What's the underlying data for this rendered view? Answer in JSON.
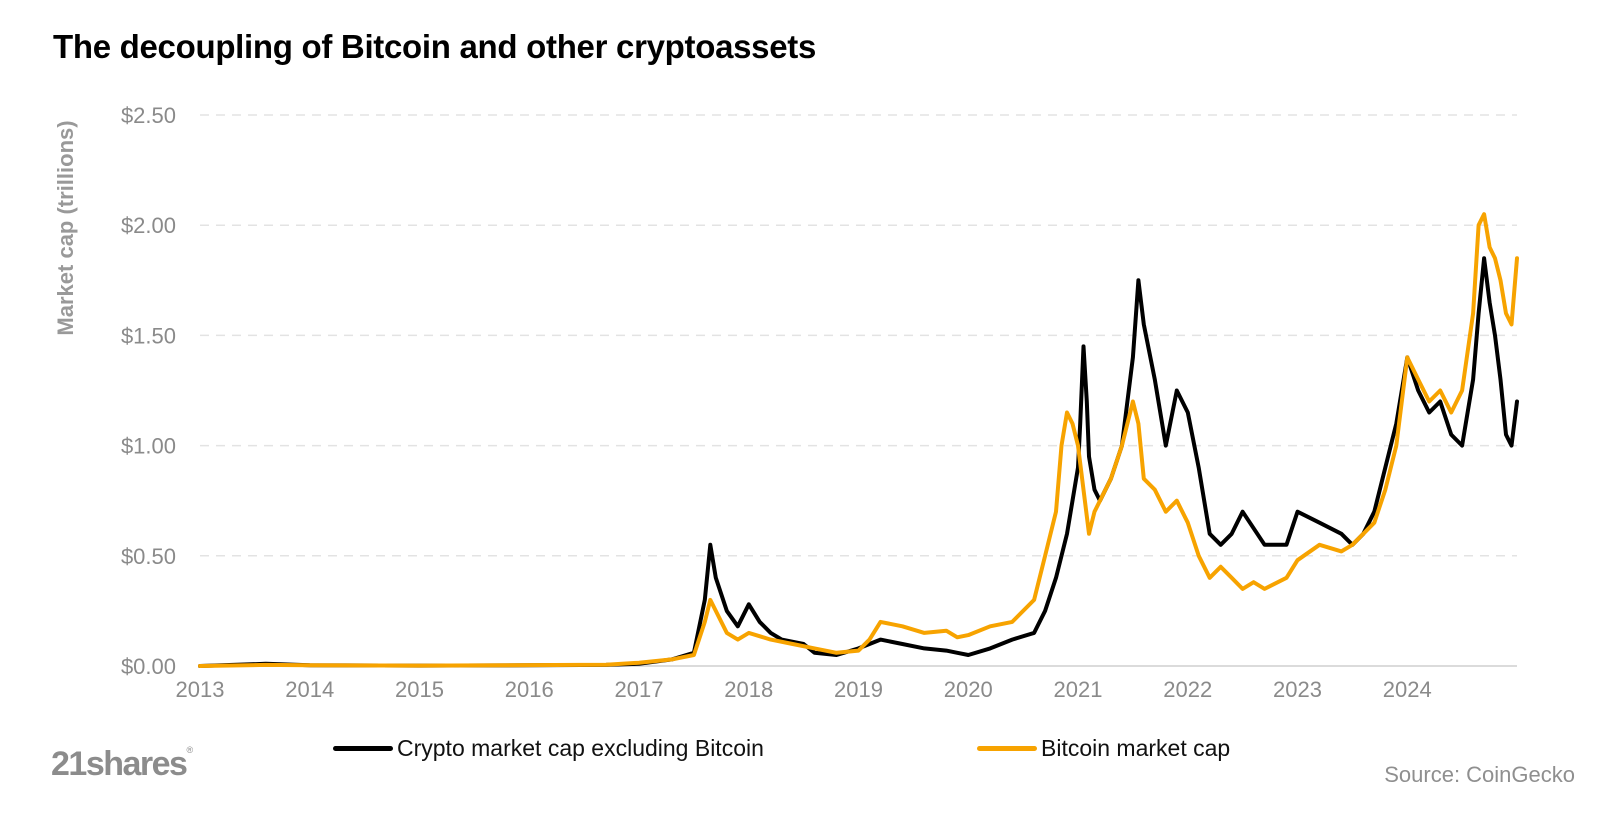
{
  "header": {
    "title": "The decoupling of Bitcoin and other cryptoassets"
  },
  "footer": {
    "brand": "21shares",
    "brand_mark": "®",
    "source": "Source: CoinGecko"
  },
  "colors": {
    "crypto_ex_btc": "#000000",
    "bitcoin": "#f7a300",
    "grid": "#e3e3e3",
    "axis_text": "#8a8a8a",
    "ylabel": "#999999"
  },
  "chart_data": {
    "type": "line",
    "title": "The decoupling of Bitcoin and other cryptoassets",
    "xlabel": "",
    "ylabel": "Market cap (trillions)",
    "xlim": [
      2013.0,
      2025.0
    ],
    "ylim": [
      0,
      2.5
    ],
    "grid": true,
    "legend_position": "bottom",
    "x_ticks": [
      2013,
      2014,
      2015,
      2016,
      2017,
      2018,
      2019,
      2020,
      2021,
      2022,
      2023,
      2024
    ],
    "x_tick_labels": [
      "2013",
      "2014",
      "2015",
      "2016",
      "2017",
      "2018",
      "2019",
      "2020",
      "2021",
      "2022",
      "2023",
      "2024"
    ],
    "y_ticks": [
      0,
      0.5,
      1.0,
      1.5,
      2.0,
      2.5
    ],
    "y_tick_labels": [
      "$0.00",
      "$0.50",
      "$1.00",
      "$1.50",
      "$2.00",
      "$2.50"
    ],
    "series": [
      {
        "name": "Crypto market cap excluding Bitcoin",
        "color": "#000000",
        "x": [
          2013.0,
          2013.6,
          2014.0,
          2015.0,
          2016.0,
          2016.7,
          2017.0,
          2017.3,
          2017.5,
          2017.6,
          2017.65,
          2017.7,
          2017.8,
          2017.9,
          2018.0,
          2018.1,
          2018.2,
          2018.3,
          2018.5,
          2018.6,
          2018.8,
          2019.0,
          2019.2,
          2019.4,
          2019.6,
          2019.8,
          2019.9,
          2020.0,
          2020.2,
          2020.4,
          2020.6,
          2020.7,
          2020.8,
          2020.9,
          2021.0,
          2021.02,
          2021.05,
          2021.08,
          2021.1,
          2021.15,
          2021.2,
          2021.3,
          2021.4,
          2021.5,
          2021.55,
          2021.6,
          2021.7,
          2021.75,
          2021.8,
          2021.9,
          2022.0,
          2022.1,
          2022.2,
          2022.3,
          2022.4,
          2022.5,
          2022.7,
          2022.9,
          2023.0,
          2023.2,
          2023.4,
          2023.5,
          2023.6,
          2023.7,
          2023.8,
          2023.9,
          2024.0,
          2024.1,
          2024.2,
          2024.3,
          2024.4,
          2024.5,
          2024.6,
          2024.65,
          2024.7,
          2024.75,
          2024.8,
          2024.85,
          2024.9,
          2024.95,
          2025.0
        ],
        "y": [
          0.0,
          0.01,
          0.003,
          0.002,
          0.003,
          0.005,
          0.01,
          0.03,
          0.06,
          0.3,
          0.55,
          0.4,
          0.25,
          0.18,
          0.28,
          0.2,
          0.15,
          0.12,
          0.1,
          0.06,
          0.05,
          0.08,
          0.12,
          0.1,
          0.08,
          0.07,
          0.06,
          0.05,
          0.08,
          0.12,
          0.15,
          0.25,
          0.4,
          0.6,
          0.9,
          1.1,
          1.45,
          1.2,
          0.95,
          0.8,
          0.75,
          0.85,
          1.0,
          1.4,
          1.75,
          1.55,
          1.3,
          1.15,
          1.0,
          1.25,
          1.15,
          0.9,
          0.6,
          0.55,
          0.6,
          0.7,
          0.55,
          0.55,
          0.7,
          0.65,
          0.6,
          0.55,
          0.6,
          0.7,
          0.9,
          1.1,
          1.4,
          1.25,
          1.15,
          1.2,
          1.05,
          1.0,
          1.3,
          1.6,
          1.85,
          1.65,
          1.5,
          1.3,
          1.05,
          1.0,
          1.2
        ]
      },
      {
        "name": "Bitcoin market cap",
        "color": "#f7a300",
        "x": [
          2013.0,
          2013.6,
          2014.0,
          2015.0,
          2016.0,
          2016.7,
          2017.0,
          2017.3,
          2017.5,
          2017.6,
          2017.65,
          2017.7,
          2017.8,
          2017.9,
          2018.0,
          2018.2,
          2018.4,
          2018.6,
          2018.8,
          2019.0,
          2019.1,
          2019.2,
          2019.4,
          2019.6,
          2019.8,
          2019.9,
          2020.0,
          2020.2,
          2020.4,
          2020.6,
          2020.7,
          2020.8,
          2020.85,
          2020.9,
          2020.95,
          2021.0,
          2021.05,
          2021.1,
          2021.15,
          2021.2,
          2021.3,
          2021.4,
          2021.5,
          2021.55,
          2021.6,
          2021.7,
          2021.8,
          2021.9,
          2022.0,
          2022.1,
          2022.2,
          2022.3,
          2022.4,
          2022.5,
          2022.6,
          2022.7,
          2022.9,
          2023.0,
          2023.2,
          2023.4,
          2023.5,
          2023.6,
          2023.7,
          2023.8,
          2023.9,
          2024.0,
          2024.1,
          2024.2,
          2024.3,
          2024.4,
          2024.5,
          2024.6,
          2024.65,
          2024.7,
          2024.75,
          2024.8,
          2024.85,
          2024.9,
          2024.95,
          2025.0
        ],
        "y": [
          0.0,
          0.005,
          0.003,
          0.002,
          0.004,
          0.006,
          0.015,
          0.03,
          0.05,
          0.2,
          0.3,
          0.25,
          0.15,
          0.12,
          0.15,
          0.12,
          0.1,
          0.08,
          0.06,
          0.07,
          0.12,
          0.2,
          0.18,
          0.15,
          0.16,
          0.13,
          0.14,
          0.18,
          0.2,
          0.3,
          0.5,
          0.7,
          1.0,
          1.15,
          1.1,
          1.0,
          0.8,
          0.6,
          0.7,
          0.75,
          0.85,
          1.0,
          1.2,
          1.1,
          0.85,
          0.8,
          0.7,
          0.75,
          0.65,
          0.5,
          0.4,
          0.45,
          0.4,
          0.35,
          0.38,
          0.35,
          0.4,
          0.48,
          0.55,
          0.52,
          0.55,
          0.6,
          0.65,
          0.8,
          1.0,
          1.4,
          1.3,
          1.2,
          1.25,
          1.15,
          1.25,
          1.6,
          2.0,
          2.05,
          1.9,
          1.85,
          1.75,
          1.6,
          1.55,
          1.85
        ]
      }
    ]
  }
}
